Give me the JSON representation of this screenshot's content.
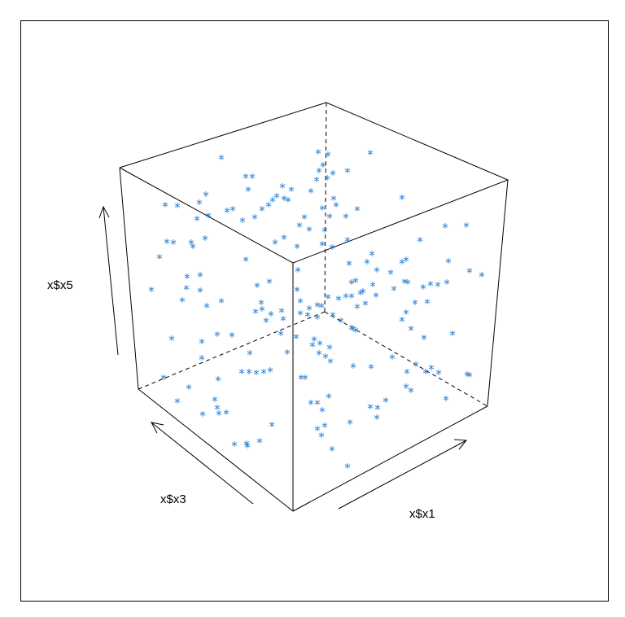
{
  "chart_data": {
    "type": "scatter",
    "title": "",
    "xlabel": "x$x1",
    "ylabel": "x$x3",
    "zlabel": "x$x5",
    "marker": "*",
    "marker_color": "#1f7ad6",
    "points": [
      [
        272,
        193
      ],
      [
        302,
        216
      ],
      [
        310,
        216
      ],
      [
        305,
        232
      ],
      [
        253,
        238
      ],
      [
        245,
        248
      ],
      [
        218,
        252
      ],
      [
        203,
        251
      ],
      [
        286,
        256
      ],
      [
        279,
        258
      ],
      [
        256,
        264
      ],
      [
        242,
        268
      ],
      [
        298,
        270
      ],
      [
        313,
        266
      ],
      [
        322,
        256
      ],
      [
        330,
        251
      ],
      [
        335,
        245
      ],
      [
        340,
        240
      ],
      [
        347,
        228
      ],
      [
        358,
        232
      ],
      [
        349,
        243
      ],
      [
        354,
        245
      ],
      [
        382,
        234
      ],
      [
        389,
        220
      ],
      [
        392,
        209
      ],
      [
        397,
        202
      ],
      [
        391,
        186
      ],
      [
        403,
        189
      ],
      [
        402,
        218
      ],
      [
        409,
        212
      ],
      [
        427,
        209
      ],
      [
        455,
        187
      ],
      [
        494,
        242
      ],
      [
        410,
        243
      ],
      [
        413,
        251
      ],
      [
        439,
        256
      ],
      [
        425,
        265
      ],
      [
        405,
        265
      ],
      [
        396,
        255
      ],
      [
        374,
        266
      ],
      [
        380,
        281
      ],
      [
        399,
        282
      ],
      [
        396,
        299
      ],
      [
        408,
        303
      ],
      [
        427,
        294
      ],
      [
        368,
        276
      ],
      [
        349,
        291
      ],
      [
        338,
        297
      ],
      [
        365,
        302
      ],
      [
        205,
        296
      ],
      [
        213,
        297
      ],
      [
        235,
        297
      ],
      [
        237,
        302
      ],
      [
        252,
        292
      ],
      [
        196,
        315
      ],
      [
        302,
        318
      ],
      [
        230,
        339
      ],
      [
        246,
        337
      ],
      [
        229,
        353
      ],
      [
        186,
        355
      ],
      [
        224,
        368
      ],
      [
        246,
        356
      ],
      [
        254,
        375
      ],
      [
        272,
        369
      ],
      [
        316,
        350
      ],
      [
        321,
        371
      ],
      [
        314,
        382
      ],
      [
        322,
        379
      ],
      [
        331,
        345
      ],
      [
        333,
        385
      ],
      [
        327,
        393
      ],
      [
        346,
        381
      ],
      [
        348,
        391
      ],
      [
        345,
        409
      ],
      [
        366,
        331
      ],
      [
        365,
        355
      ],
      [
        369,
        369
      ],
      [
        369,
        384
      ],
      [
        378,
        386
      ],
      [
        380,
        378
      ],
      [
        390,
        374
      ],
      [
        395,
        375
      ],
      [
        403,
        364
      ],
      [
        416,
        366
      ],
      [
        425,
        363
      ],
      [
        432,
        363
      ],
      [
        439,
        376
      ],
      [
        449,
        372
      ],
      [
        443,
        359
      ],
      [
        432,
        346
      ],
      [
        437,
        344
      ],
      [
        429,
        323
      ],
      [
        451,
        321
      ],
      [
        457,
        311
      ],
      [
        463,
        331
      ],
      [
        458,
        349
      ],
      [
        446,
        357
      ],
      [
        462,
        362
      ],
      [
        480,
        334
      ],
      [
        484,
        354
      ],
      [
        497,
        345
      ],
      [
        499,
        318
      ],
      [
        494,
        321
      ],
      [
        516,
        294
      ],
      [
        547,
        277
      ],
      [
        573,
        276
      ],
      [
        551,
        320
      ],
      [
        577,
        332
      ],
      [
        592,
        337
      ],
      [
        549,
        346
      ],
      [
        538,
        349
      ],
      [
        529,
        348
      ],
      [
        520,
        352
      ],
      [
        501,
        346
      ],
      [
        525,
        370
      ],
      [
        510,
        371
      ],
      [
        499,
        383
      ],
      [
        494,
        392
      ],
      [
        505,
        403
      ],
      [
        521,
        414
      ],
      [
        556,
        409
      ],
      [
        434,
        403
      ],
      [
        419,
        393
      ],
      [
        437,
        405
      ],
      [
        432,
        402
      ],
      [
        390,
        389
      ],
      [
        386,
        416
      ],
      [
        384,
        423
      ],
      [
        392,
        433
      ],
      [
        400,
        437
      ],
      [
        405,
        426
      ],
      [
        406,
        443
      ],
      [
        434,
        449
      ],
      [
        456,
        450
      ],
      [
        482,
        438
      ],
      [
        511,
        447
      ],
      [
        500,
        456
      ],
      [
        523,
        456
      ],
      [
        530,
        451
      ],
      [
        539,
        457
      ],
      [
        577,
        460
      ],
      [
        574,
        459
      ],
      [
        548,
        489
      ],
      [
        505,
        479
      ],
      [
        499,
        474
      ],
      [
        474,
        491
      ],
      [
        464,
        500
      ],
      [
        455,
        499
      ],
      [
        463,
        512
      ],
      [
        430,
        518
      ],
      [
        404,
        486
      ],
      [
        396,
        503
      ],
      [
        390,
        494
      ],
      [
        382,
        494
      ],
      [
        390,
        526
      ],
      [
        399,
        522
      ],
      [
        395,
        534
      ],
      [
        408,
        551
      ],
      [
        427,
        572
      ],
      [
        353,
        432
      ],
      [
        332,
        454
      ],
      [
        324,
        456
      ],
      [
        315,
        457
      ],
      [
        306,
        456
      ],
      [
        297,
        456
      ],
      [
        285,
        411
      ],
      [
        267,
        410
      ],
      [
        248,
        419
      ],
      [
        211,
        415
      ],
      [
        248,
        439
      ],
      [
        201,
        463
      ],
      [
        232,
        475
      ],
      [
        218,
        492
      ],
      [
        268,
        465
      ],
      [
        264,
        490
      ],
      [
        249,
        508
      ],
      [
        267,
        500
      ],
      [
        269,
        507
      ],
      [
        278,
        506
      ],
      [
        334,
        521
      ],
      [
        319,
        541
      ],
      [
        303,
        544
      ],
      [
        288,
        545
      ],
      [
        304,
        547
      ],
      [
        375,
        463
      ],
      [
        370,
        463
      ],
      [
        307,
        433
      ],
      [
        364,
        413
      ],
      [
        393,
        421
      ],
      [
        409,
        386
      ]
    ]
  }
}
